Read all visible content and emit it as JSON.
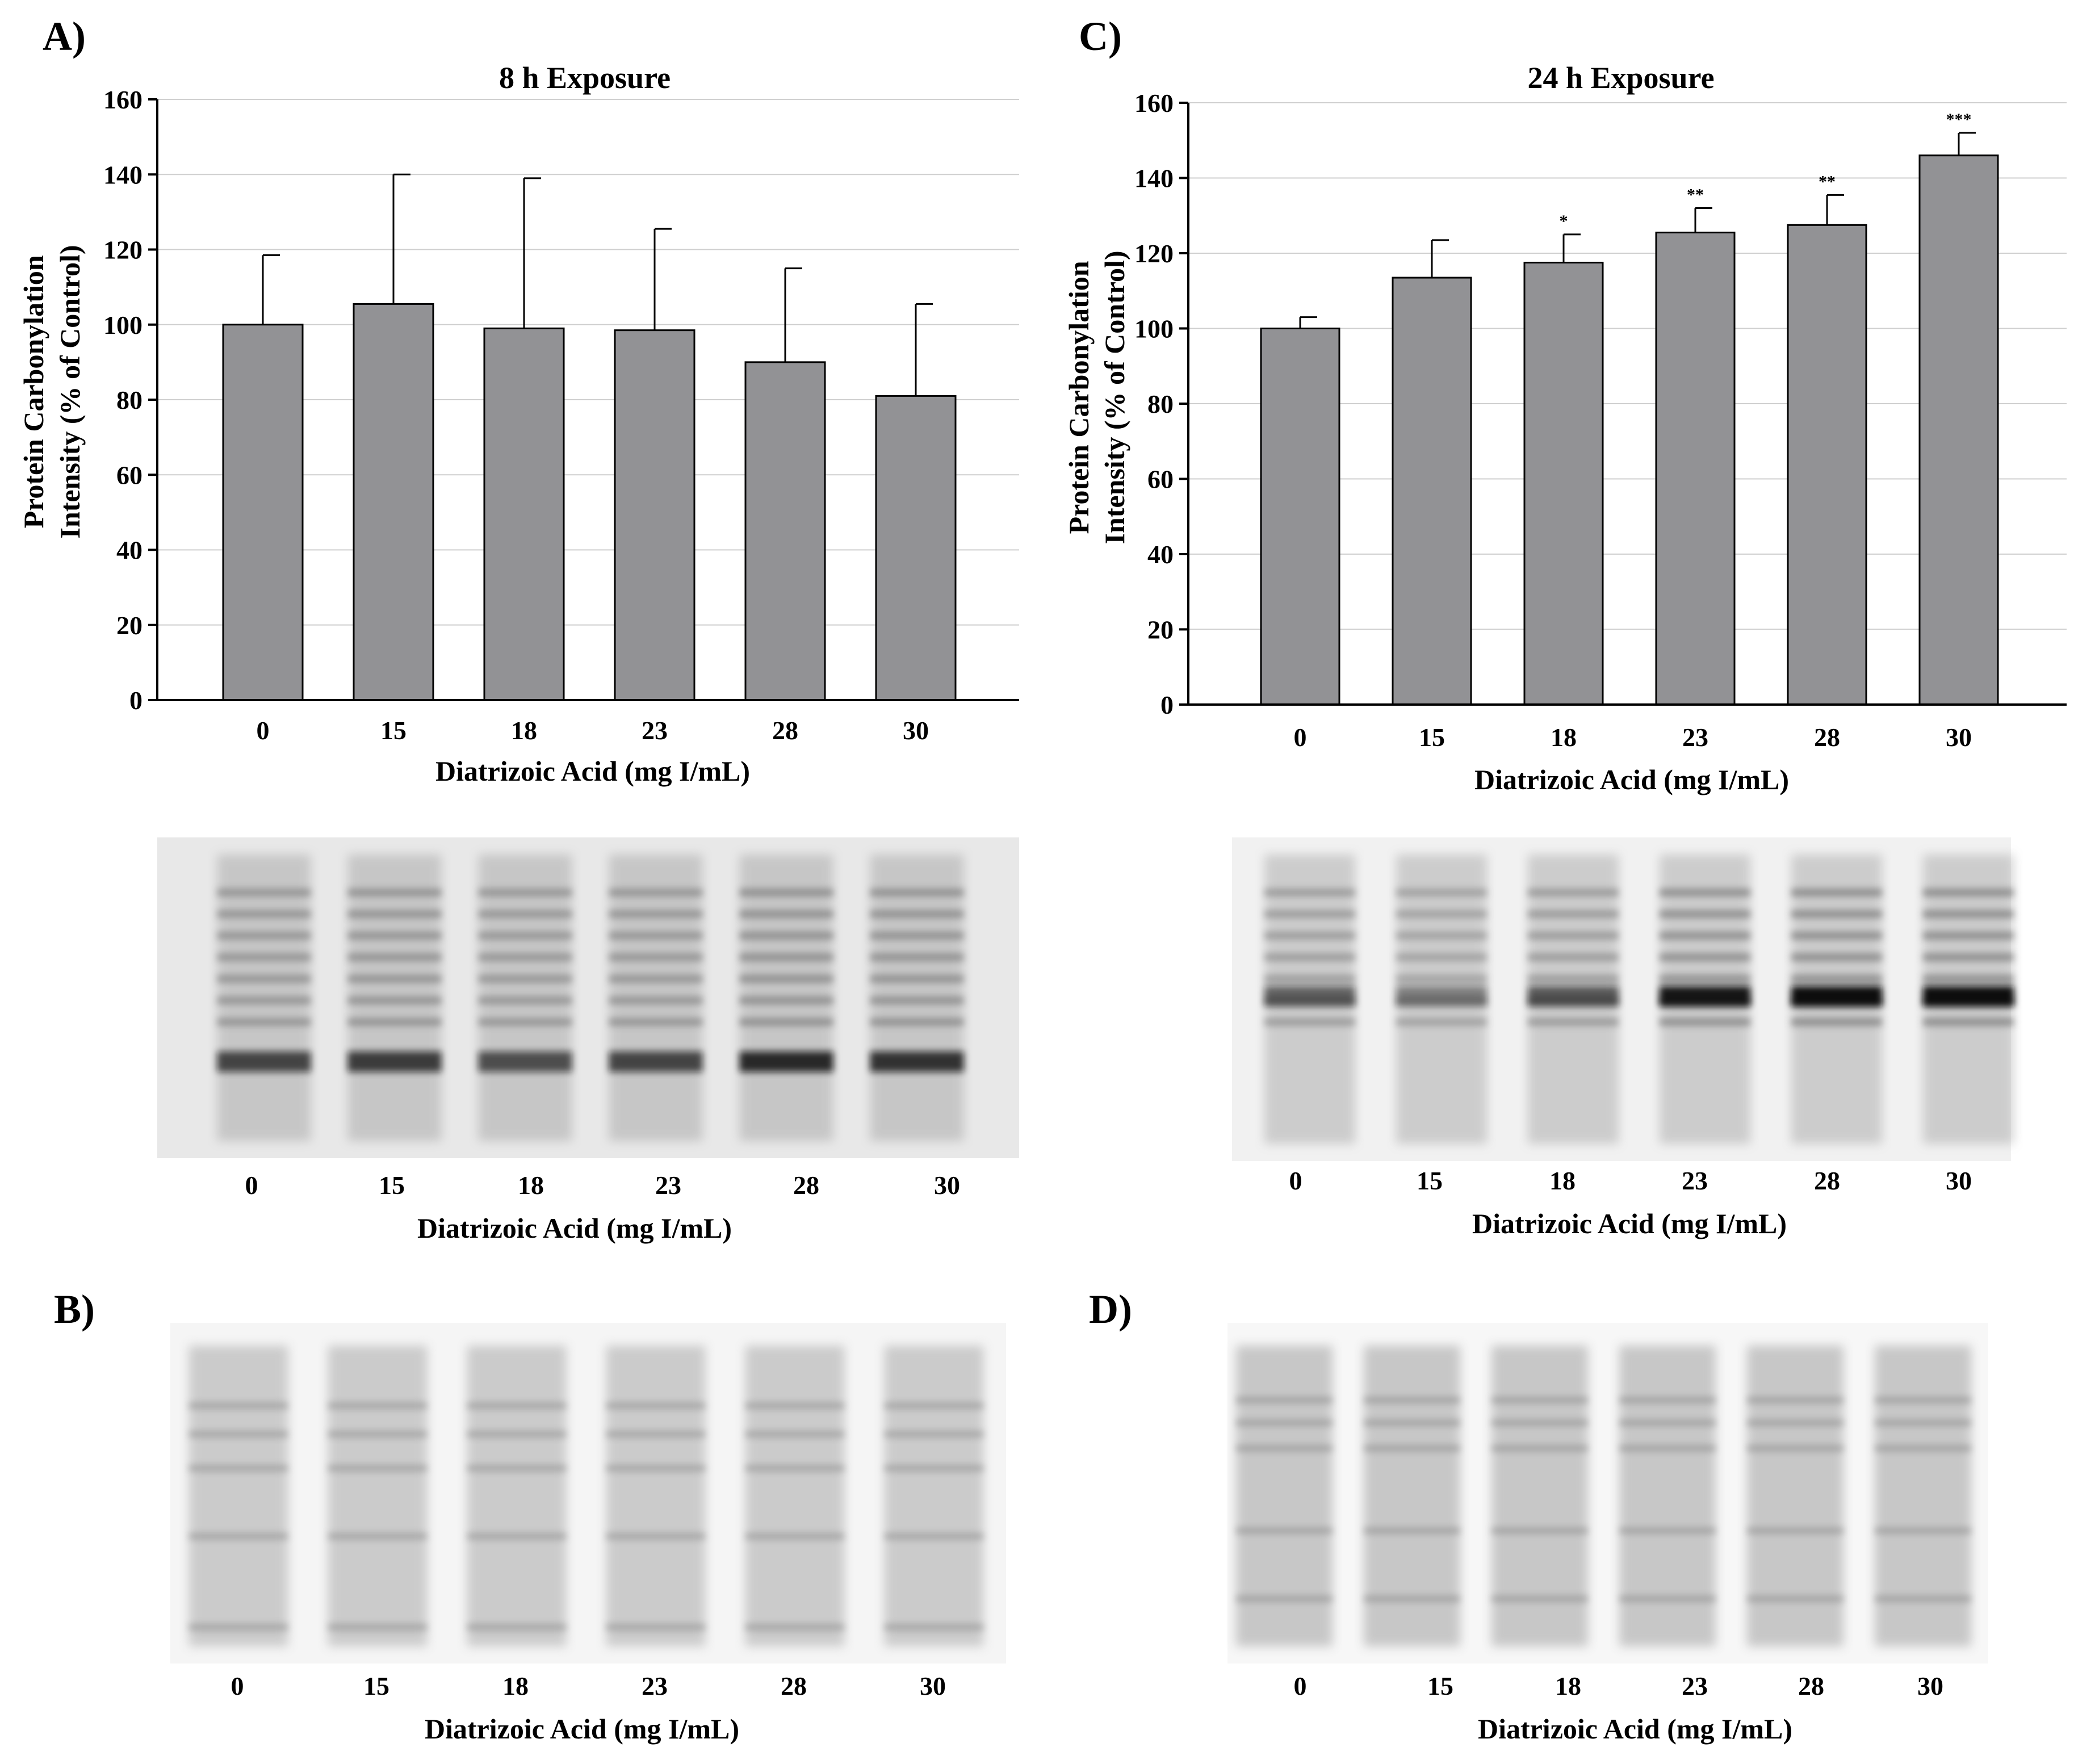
{
  "panels": {
    "a": "A)",
    "b": "B)",
    "c": "C)",
    "d": "D)"
  },
  "chart_data": [
    {
      "type": "bar",
      "title": "8 h Exposure",
      "xlabel": "Diatrizoic Acid (mg I/mL)",
      "ylabel_line1": "Protein Carbonylation",
      "ylabel_line2": "Intensity (% of Control)",
      "categories": [
        "0",
        "15",
        "18",
        "23",
        "28",
        "30"
      ],
      "values": [
        100,
        105.5,
        99,
        98.5,
        90,
        81
      ],
      "errors": [
        18.5,
        34.5,
        40,
        27,
        25,
        24.5
      ],
      "significance": [
        "",
        "",
        "",
        "",
        "",
        ""
      ],
      "ylim": [
        0,
        160
      ],
      "yticks": [
        0,
        20,
        40,
        60,
        80,
        100,
        120,
        140,
        160
      ],
      "grid": true,
      "bar_color": "#929295"
    },
    {
      "type": "bar",
      "title": "24 h Exposure",
      "xlabel": "Diatrizoic Acid (mg I/mL)",
      "ylabel_line1": "Protein Carbonylation",
      "ylabel_line2": "Intensity (% of Control)",
      "categories": [
        "0",
        "15",
        "18",
        "23",
        "28",
        "30"
      ],
      "values": [
        100,
        113.5,
        117.5,
        125.5,
        127.5,
        146
      ],
      "errors": [
        3,
        10,
        7.5,
        6.5,
        8,
        6
      ],
      "significance": [
        "",
        "",
        "*",
        "**",
        "**",
        "***"
      ],
      "ylim": [
        0,
        160
      ],
      "yticks": [
        0,
        20,
        40,
        60,
        80,
        100,
        120,
        140,
        160
      ],
      "grid": true,
      "bar_color": "#929295"
    }
  ],
  "blots": {
    "a": {
      "lanes": [
        "0",
        "15",
        "18",
        "23",
        "28",
        "30"
      ],
      "xlabel": "Diatrizoic Acid (mg I/mL)",
      "band_intensity": [
        0.7,
        0.75,
        0.65,
        0.7,
        0.85,
        0.8
      ]
    },
    "c": {
      "lanes": [
        "0",
        "15",
        "18",
        "23",
        "28",
        "30"
      ],
      "xlabel": "Diatrizoic Acid (mg I/mL)",
      "band_intensity": [
        0.55,
        0.4,
        0.6,
        0.95,
        1.0,
        1.0
      ]
    },
    "b": {
      "lanes": [
        "0",
        "15",
        "18",
        "23",
        "28",
        "30"
      ],
      "xlabel": "Diatrizoic Acid (mg I/mL)"
    },
    "d": {
      "lanes": [
        "0",
        "15",
        "18",
        "23",
        "28",
        "30"
      ],
      "xlabel": "Diatrizoic Acid (mg I/mL)"
    }
  }
}
